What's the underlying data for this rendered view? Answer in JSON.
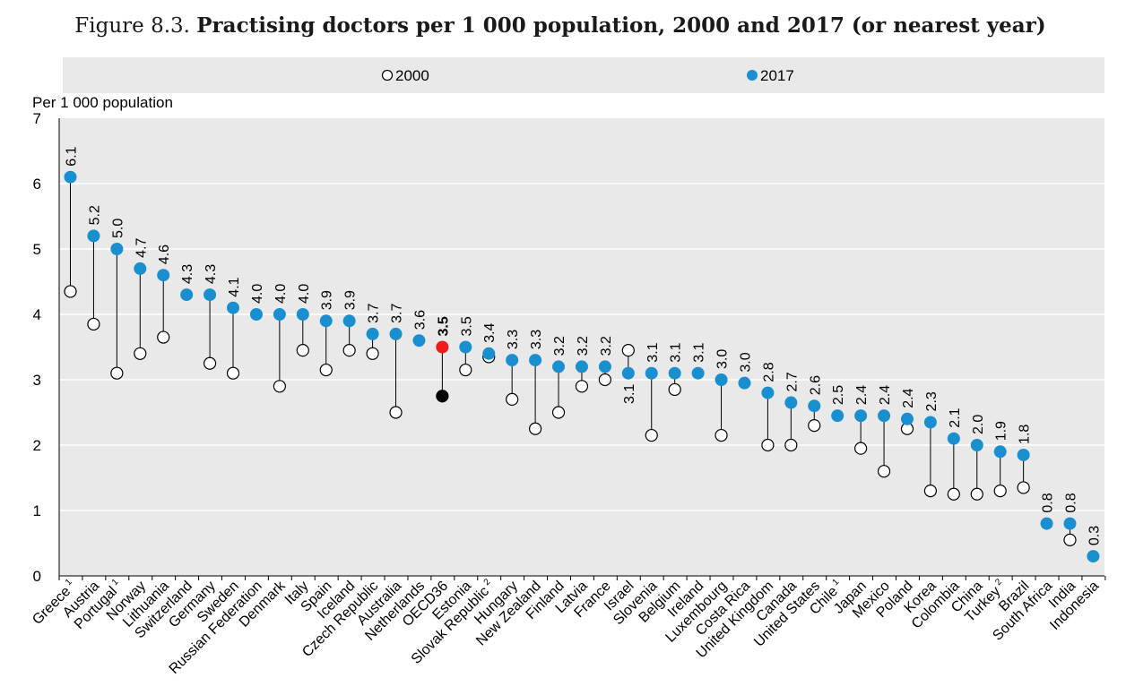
{
  "title_prefix": "Figure 8.3.",
  "title_main": "Practising doctors per 1 000 population, 2000 and 2017 (or nearest year)",
  "legend": [
    {
      "label": "2000",
      "marker": "hollow"
    },
    {
      "label": "2017",
      "marker": "filled"
    }
  ],
  "colors": {
    "plot_bg": "#e9e9e9",
    "legend_bg": "#e9e9e9",
    "grid": "#ffffff",
    "series_2017": "#1a8fd0",
    "highlight_2017": "#ee1c1c",
    "highlight_2000": "#000000",
    "stem": "#000000"
  },
  "chart_data": {
    "type": "dot-range",
    "ylabel": "Per 1 000 population",
    "ylim": [
      0,
      7
    ],
    "yticks": [
      0,
      1,
      2,
      3,
      4,
      5,
      6,
      7
    ],
    "grid": "horizontal",
    "legend_position": "top",
    "highlight_category": "OECD36",
    "categories": [
      {
        "name": "Greece",
        "sup": "1",
        "v2017": 6.1,
        "v2000": 4.35,
        "label": "6.1"
      },
      {
        "name": "Austria",
        "sup": "",
        "v2017": 5.2,
        "v2000": 3.85,
        "label": "5.2"
      },
      {
        "name": "Portugal",
        "sup": "1",
        "v2017": 5.0,
        "v2000": 3.1,
        "label": "5.0"
      },
      {
        "name": "Norway",
        "sup": "",
        "v2017": 4.7,
        "v2000": 3.4,
        "label": "4.7"
      },
      {
        "name": "Lithuania",
        "sup": "",
        "v2017": 4.6,
        "v2000": 3.65,
        "label": "4.6"
      },
      {
        "name": "Switzerland",
        "sup": "",
        "v2017": 4.3,
        "v2000": null,
        "label": "4.3"
      },
      {
        "name": "Germany",
        "sup": "",
        "v2017": 4.3,
        "v2000": 3.25,
        "label": "4.3"
      },
      {
        "name": "Sweden",
        "sup": "",
        "v2017": 4.1,
        "v2000": 3.1,
        "label": "4.1"
      },
      {
        "name": "Russian Federation",
        "sup": "",
        "v2017": 4.0,
        "v2000": null,
        "label": "4.0"
      },
      {
        "name": "Denmark",
        "sup": "",
        "v2017": 4.0,
        "v2000": 2.9,
        "label": "4.0"
      },
      {
        "name": "Italy",
        "sup": "",
        "v2017": 4.0,
        "v2000": 3.45,
        "label": "4.0"
      },
      {
        "name": "Spain",
        "sup": "",
        "v2017": 3.9,
        "v2000": 3.15,
        "label": "3.9"
      },
      {
        "name": "Iceland",
        "sup": "",
        "v2017": 3.9,
        "v2000": 3.45,
        "label": "3.9"
      },
      {
        "name": "Czech Republic",
        "sup": "",
        "v2017": 3.7,
        "v2000": 3.4,
        "label": "3.7"
      },
      {
        "name": "Australia",
        "sup": "",
        "v2017": 3.7,
        "v2000": 2.5,
        "label": "3.7"
      },
      {
        "name": "Netherlands",
        "sup": "",
        "v2017": 3.6,
        "v2000": null,
        "label": "3.6"
      },
      {
        "name": "OECD36",
        "sup": "",
        "v2017": 3.5,
        "v2000": 2.75,
        "label": "3.5"
      },
      {
        "name": "Estonia",
        "sup": "",
        "v2017": 3.5,
        "v2000": 3.15,
        "label": "3.5"
      },
      {
        "name": "Slovak Republic",
        "sup": "2",
        "v2017": 3.4,
        "v2000": 3.35,
        "label": "3.4"
      },
      {
        "name": "Hungary",
        "sup": "",
        "v2017": 3.3,
        "v2000": 2.7,
        "label": "3.3"
      },
      {
        "name": "New Zealand",
        "sup": "",
        "v2017": 3.3,
        "v2000": 2.25,
        "label": "3.3"
      },
      {
        "name": "Finland",
        "sup": "",
        "v2017": 3.2,
        "v2000": 2.5,
        "label": "3.2"
      },
      {
        "name": "Latvia",
        "sup": "",
        "v2017": 3.2,
        "v2000": 2.9,
        "label": "3.2"
      },
      {
        "name": "France",
        "sup": "",
        "v2017": 3.2,
        "v2000": 3.0,
        "label": "3.2"
      },
      {
        "name": "Israel",
        "sup": "",
        "v2017": 3.1,
        "v2000": 3.45,
        "label": "3.1"
      },
      {
        "name": "Slovenia",
        "sup": "",
        "v2017": 3.1,
        "v2000": 2.15,
        "label": "3.1"
      },
      {
        "name": "Belgium",
        "sup": "",
        "v2017": 3.1,
        "v2000": 2.85,
        "label": "3.1"
      },
      {
        "name": "Ireland",
        "sup": "",
        "v2017": 3.1,
        "v2000": null,
        "label": "3.1"
      },
      {
        "name": "Luxembourg",
        "sup": "",
        "v2017": 3.0,
        "v2000": 2.15,
        "label": "3.0"
      },
      {
        "name": "Costa Rica",
        "sup": "",
        "v2017": 2.95,
        "v2000": null,
        "label": "3.0"
      },
      {
        "name": "United Kingdom",
        "sup": "",
        "v2017": 2.8,
        "v2000": 2.0,
        "label": "2.8"
      },
      {
        "name": "Canada",
        "sup": "",
        "v2017": 2.65,
        "v2000": 2.0,
        "label": "2.7"
      },
      {
        "name": "United States",
        "sup": "",
        "v2017": 2.6,
        "v2000": 2.3,
        "label": "2.6"
      },
      {
        "name": "Chile",
        "sup": "1",
        "v2017": 2.45,
        "v2000": null,
        "label": "2.5"
      },
      {
        "name": "Japan",
        "sup": "",
        "v2017": 2.45,
        "v2000": 1.95,
        "label": "2.4"
      },
      {
        "name": "Mexico",
        "sup": "",
        "v2017": 2.45,
        "v2000": 1.6,
        "label": "2.4"
      },
      {
        "name": "Poland",
        "sup": "",
        "v2017": 2.4,
        "v2000": 2.25,
        "label": "2.4"
      },
      {
        "name": "Korea",
        "sup": "",
        "v2017": 2.35,
        "v2000": 1.3,
        "label": "2.3"
      },
      {
        "name": "Colombia",
        "sup": "",
        "v2017": 2.1,
        "v2000": 1.25,
        "label": "2.1"
      },
      {
        "name": "China",
        "sup": "",
        "v2017": 2.0,
        "v2000": 1.25,
        "label": "2.0"
      },
      {
        "name": "Turkey",
        "sup": "2",
        "v2017": 1.9,
        "v2000": 1.3,
        "label": "1.9"
      },
      {
        "name": "Brazil",
        "sup": "",
        "v2017": 1.85,
        "v2000": 1.35,
        "label": "1.8"
      },
      {
        "name": "South Africa",
        "sup": "",
        "v2017": 0.8,
        "v2000": null,
        "label": "0.8"
      },
      {
        "name": "India",
        "sup": "",
        "v2017": 0.8,
        "v2000": 0.55,
        "label": "0.8"
      },
      {
        "name": "Indonesia",
        "sup": "",
        "v2017": 0.3,
        "v2000": null,
        "label": "0.3"
      }
    ]
  }
}
